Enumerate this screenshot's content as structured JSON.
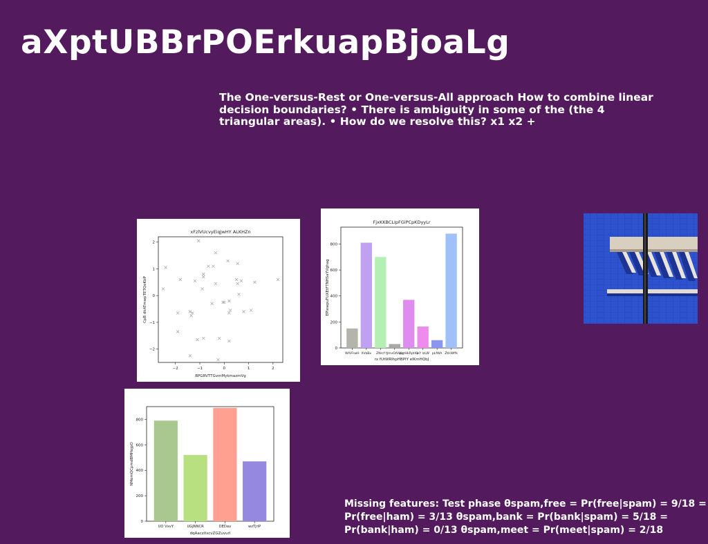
{
  "slide": {
    "title": "aXptUBBrPOErkuapBjoaLg",
    "body": "The One-versus-Rest or One-versus-All approach How to combine linear decision boundaries? • There is ambiguity in some of the (the 4 triangular areas). • How do we resolve this? x1 x2 +",
    "footer": "Missing features: Test phase θspam,free = Pr(free|spam) = 9/18 = Pr(free|ham) = 3/13 θspam,bank = Pr(bank|spam) = 5/18 = Pr(bank|ham) = 0/13 θspam,meet = Pr(meet|spam) = 2/18"
  },
  "photo": {
    "icon": "building-facade-image"
  },
  "chart_data": [
    {
      "type": "scatter",
      "title": "xFzlVUcvyEiqJwHY ALKHZn",
      "xlabel": "BPGRVTTGvmMykmazmVg",
      "ylabel": "CpB dkATmwpTETQeKbP",
      "xlim": [
        -2.7,
        2.4
      ],
      "ylim": [
        -2.5,
        2.2
      ],
      "xticks": [
        -2,
        -1,
        0,
        1,
        2
      ],
      "yticks": [
        -2,
        -1,
        0,
        1,
        2
      ],
      "grid": false,
      "marker": "x",
      "color": "#aaaaaa",
      "points": [
        {
          "x": -2.4,
          "y": 1.05
        },
        {
          "x": -2.5,
          "y": 0.25
        },
        {
          "x": -1.8,
          "y": 0.6
        },
        {
          "x": -1.9,
          "y": -0.65
        },
        {
          "x": -1.9,
          "y": -1.35
        },
        {
          "x": -1.4,
          "y": -0.6
        },
        {
          "x": -1.35,
          "y": -0.75
        },
        {
          "x": -1.3,
          "y": -0.65
        },
        {
          "x": -1.4,
          "y": -2.25
        },
        {
          "x": -1.2,
          "y": 0.55
        },
        {
          "x": -1.1,
          "y": -1.65
        },
        {
          "x": -1.05,
          "y": 2.05
        },
        {
          "x": -0.9,
          "y": 0.25
        },
        {
          "x": -0.85,
          "y": 0.7
        },
        {
          "x": -0.85,
          "y": 0.8
        },
        {
          "x": -0.85,
          "y": -1.6
        },
        {
          "x": -0.65,
          "y": 1.1
        },
        {
          "x": -0.5,
          "y": -0.3
        },
        {
          "x": -0.45,
          "y": 1.1
        },
        {
          "x": -0.35,
          "y": 0.45
        },
        {
          "x": -0.35,
          "y": 1.6
        },
        {
          "x": -0.25,
          "y": -2.4
        },
        {
          "x": -0.2,
          "y": -1.6
        },
        {
          "x": 0.0,
          "y": -0.25
        },
        {
          "x": -0.05,
          "y": -0.25
        },
        {
          "x": 0.15,
          "y": 1.3
        },
        {
          "x": 0.2,
          "y": -0.2
        },
        {
          "x": 0.2,
          "y": -0.65
        },
        {
          "x": 0.2,
          "y": -1.7
        },
        {
          "x": 0.25,
          "y": -0.55
        },
        {
          "x": 0.5,
          "y": 0.6
        },
        {
          "x": 0.55,
          "y": 0.45
        },
        {
          "x": 0.55,
          "y": 1.2
        },
        {
          "x": 0.6,
          "y": 0.05
        },
        {
          "x": 0.7,
          "y": 0.55
        },
        {
          "x": 0.8,
          "y": -0.6
        },
        {
          "x": 1.1,
          "y": -0.55
        },
        {
          "x": 1.25,
          "y": 0.5
        },
        {
          "x": 2.2,
          "y": 0.6
        }
      ]
    },
    {
      "type": "bar",
      "title": "FjxKKBCLIpFGiPCpKDyyLr",
      "xlabel": "rx fUtWRlhpHBPIY elKmHQbJ",
      "ylabel": "EPlewpuFUXEtFTNHSaYVghag",
      "ylim": [
        0,
        930
      ],
      "yticks": [
        0,
        200,
        400,
        600,
        800
      ],
      "categories": [
        "WIVFrwH",
        "XVaBx",
        "ZNrcf",
        "tJmvOAlWp",
        "pqtHkRptlQ",
        "wY lzLW",
        "pLfWA",
        "ZtHWffk"
      ],
      "values": [
        150,
        810,
        700,
        30,
        370,
        165,
        60,
        880
      ],
      "colors": [
        "#b4b4ac",
        "#c0a0f0",
        "#b4f0b4",
        "#a8a8a4",
        "#de8cee",
        "#ee8cee",
        "#8c96ee",
        "#a0c0f8"
      ]
    },
    {
      "type": "bar",
      "title": "",
      "xlabel": "dqAaczXscvZGZuvurl",
      "ylabel": "NMomQCpmdBMHojpO",
      "ylim": [
        0,
        900
      ],
      "yticks": [
        0,
        200,
        400,
        600,
        800
      ],
      "categories": [
        "UO VxvY",
        "UGJNNCR",
        "DEDav",
        "wzTjrlP"
      ],
      "values": [
        790,
        520,
        890,
        470
      ],
      "colors": [
        "#a8c890",
        "#b8e080",
        "#ffa090",
        "#9488e0"
      ]
    }
  ]
}
